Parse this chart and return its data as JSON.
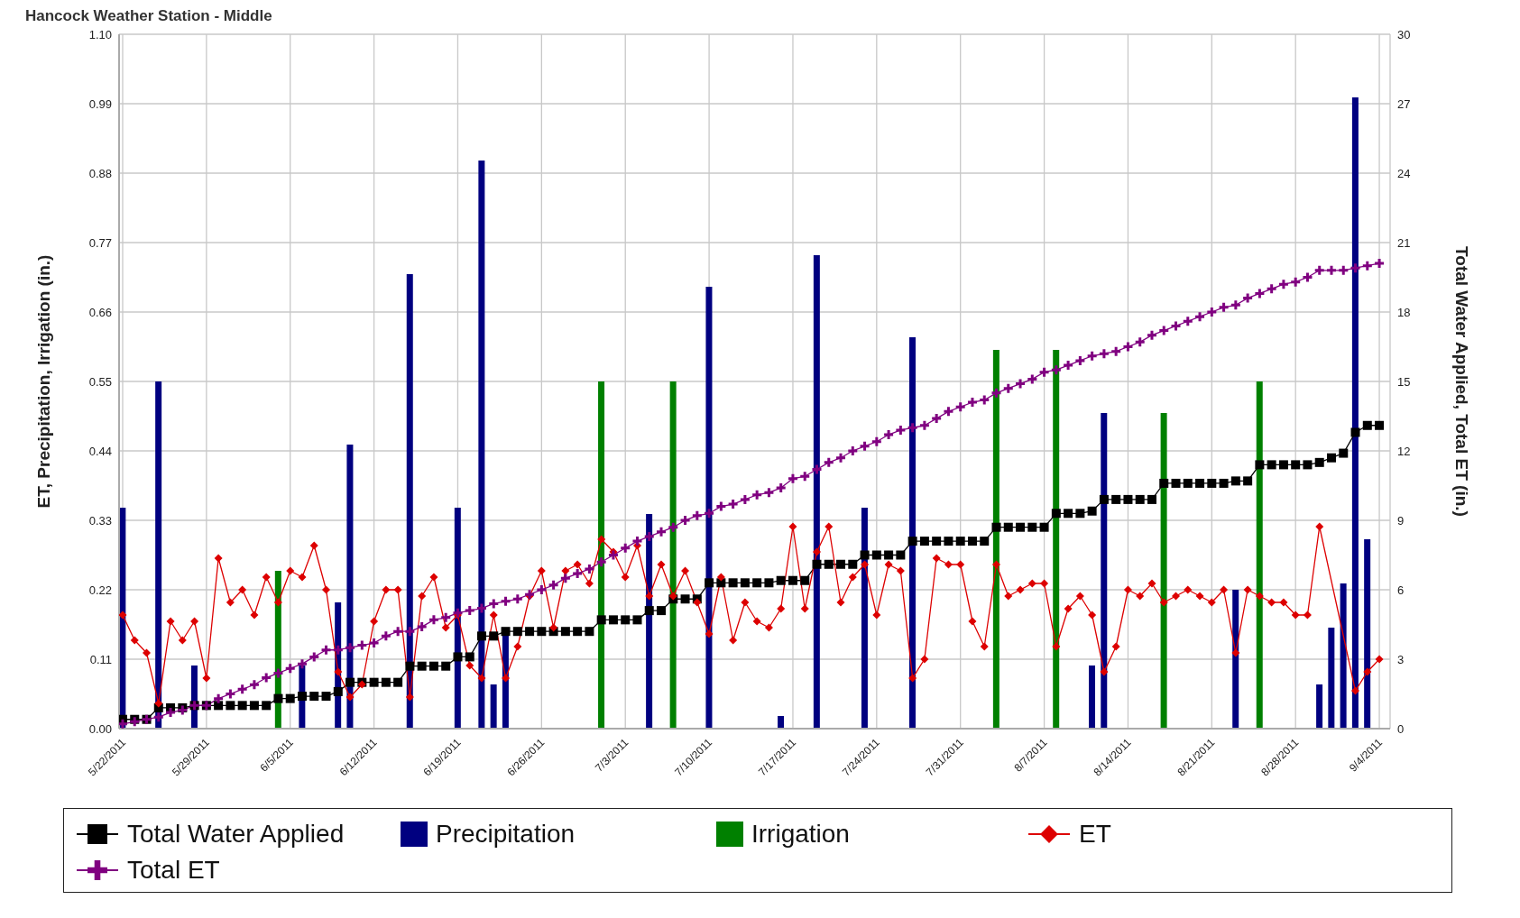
{
  "chart_data": {
    "type": "line",
    "title": "Hancock Weather Station - Middle",
    "ylabel": "ET, Precipitation, Irrigation (in.)",
    "y2label": "Total Water Applied, Total ET (in.)",
    "categories": [
      "5/22/2011",
      null,
      null,
      null,
      null,
      null,
      null,
      "5/29/2011",
      null,
      null,
      null,
      null,
      null,
      null,
      "6/5/2011",
      null,
      null,
      null,
      null,
      null,
      null,
      "6/12/2011",
      null,
      null,
      null,
      null,
      null,
      null,
      "6/19/2011",
      null,
      null,
      null,
      null,
      null,
      null,
      "6/26/2011",
      null,
      null,
      null,
      null,
      null,
      null,
      "7/3/2011",
      null,
      null,
      null,
      null,
      null,
      null,
      "7/10/2011",
      null,
      null,
      null,
      null,
      null,
      null,
      "7/17/2011",
      null,
      null,
      null,
      null,
      null,
      null,
      "7/24/2011",
      null,
      null,
      null,
      null,
      null,
      null,
      "7/31/2011",
      null,
      null,
      null,
      null,
      null,
      null,
      "8/7/2011",
      null,
      null,
      null,
      null,
      null,
      null,
      "8/14/2011",
      null,
      null,
      null,
      null,
      null,
      null,
      "8/21/2011",
      null,
      null,
      null,
      null,
      null,
      null,
      "8/28/2011",
      null,
      null,
      null,
      null,
      null,
      null,
      "9/4/2011"
    ],
    "series": [
      {
        "name": "Total Water Applied",
        "axis": "y2",
        "color": "#000000",
        "marker": "square",
        "values": [
          0.4,
          0.4,
          0.4,
          0.9,
          0.9,
          0.9,
          1.0,
          1.0,
          1.0,
          1.0,
          1.0,
          1.0,
          1.0,
          1.3,
          1.3,
          1.4,
          1.4,
          1.4,
          1.6,
          2.0,
          2.0,
          2.0,
          2.0,
          2.0,
          2.7,
          2.7,
          2.7,
          2.7,
          3.1,
          3.1,
          4.0,
          4.0,
          4.2,
          4.2,
          4.2,
          4.2,
          4.2,
          4.2,
          4.2,
          4.2,
          4.7,
          4.7,
          4.7,
          4.7,
          5.1,
          5.1,
          5.6,
          5.6,
          5.6,
          6.3,
          6.3,
          6.3,
          6.3,
          6.3,
          6.3,
          6.4,
          6.4,
          6.4,
          7.1,
          7.1,
          7.1,
          7.1,
          7.5,
          7.5,
          7.5,
          7.5,
          8.1,
          8.1,
          8.1,
          8.1,
          8.1,
          8.1,
          8.1,
          8.7,
          8.7,
          8.7,
          8.7,
          8.7,
          9.3,
          9.3,
          9.3,
          9.4,
          9.9,
          9.9,
          9.9,
          9.9,
          9.9,
          10.6,
          10.6,
          10.6,
          10.6,
          10.6,
          10.6,
          10.7,
          10.7,
          11.4,
          11.4,
          11.4,
          11.4,
          11.4,
          11.5,
          11.7,
          11.9,
          12.8,
          13.1,
          13.1
        ]
      },
      {
        "name": "Precipitation",
        "type": "bar",
        "color": "#000080",
        "values": [
          0.35,
          null,
          null,
          0.55,
          null,
          null,
          0.1,
          null,
          null,
          null,
          null,
          null,
          null,
          null,
          null,
          0.1,
          null,
          null,
          0.2,
          0.45,
          null,
          null,
          null,
          null,
          0.72,
          null,
          null,
          null,
          0.35,
          null,
          0.9,
          0.07,
          0.15,
          null,
          null,
          null,
          null,
          null,
          null,
          null,
          null,
          null,
          null,
          null,
          0.34,
          null,
          null,
          null,
          null,
          0.7,
          null,
          null,
          null,
          null,
          null,
          0.02,
          null,
          null,
          0.75,
          null,
          null,
          null,
          0.35,
          null,
          null,
          null,
          0.62,
          null,
          null,
          null,
          null,
          null,
          null,
          null,
          null,
          null,
          null,
          null,
          null,
          null,
          null,
          0.1,
          0.5,
          null,
          null,
          null,
          null,
          null,
          null,
          null,
          null,
          null,
          null,
          0.22,
          null,
          null,
          null,
          null,
          null,
          null,
          0.07,
          0.16,
          0.23,
          1.0,
          0.3,
          null
        ]
      },
      {
        "name": "Irrigation",
        "type": "bar",
        "color": "#008000",
        "values": [
          null,
          null,
          null,
          null,
          null,
          null,
          null,
          null,
          null,
          null,
          null,
          null,
          null,
          0.25,
          null,
          null,
          null,
          null,
          null,
          null,
          null,
          null,
          null,
          null,
          null,
          null,
          null,
          null,
          null,
          null,
          null,
          null,
          null,
          null,
          null,
          null,
          null,
          null,
          null,
          null,
          0.55,
          null,
          null,
          null,
          null,
          null,
          0.55,
          null,
          null,
          null,
          null,
          null,
          null,
          null,
          null,
          null,
          null,
          null,
          null,
          null,
          null,
          null,
          null,
          null,
          null,
          null,
          null,
          null,
          null,
          null,
          null,
          null,
          null,
          0.6,
          null,
          null,
          null,
          null,
          0.6,
          null,
          null,
          null,
          null,
          null,
          null,
          null,
          null,
          0.5,
          null,
          null,
          null,
          null,
          null,
          null,
          null,
          0.55,
          null,
          null,
          null,
          null,
          null,
          null,
          null,
          null,
          null,
          null
        ]
      },
      {
        "name": "ET",
        "color": "#dd0000",
        "marker": "diamond",
        "values": [
          0.18,
          0.14,
          0.12,
          0.04,
          0.17,
          0.14,
          0.17,
          0.08,
          0.27,
          0.2,
          0.22,
          0.18,
          0.24,
          0.2,
          0.25,
          0.24,
          0.29,
          0.22,
          0.09,
          0.05,
          0.07,
          0.17,
          0.22,
          0.22,
          0.05,
          0.21,
          0.24,
          0.16,
          0.18,
          0.1,
          0.08,
          0.18,
          0.08,
          0.13,
          0.21,
          0.25,
          0.16,
          0.25,
          0.26,
          0.23,
          0.3,
          0.28,
          0.24,
          0.29,
          0.21,
          0.26,
          0.21,
          0.25,
          0.2,
          0.15,
          0.24,
          0.14,
          0.2,
          0.17,
          0.16,
          0.19,
          0.32,
          0.19,
          0.28,
          0.32,
          0.2,
          0.24,
          0.26,
          0.18,
          0.26,
          0.25,
          0.08,
          0.11,
          0.27,
          0.26,
          0.26,
          0.17,
          0.13,
          0.26,
          0.21,
          0.22,
          0.23,
          0.23,
          0.13,
          0.19,
          0.21,
          0.18,
          0.09,
          0.13,
          0.22,
          0.21,
          0.23,
          0.2,
          0.21,
          0.22,
          0.21,
          0.2,
          0.22,
          0.12,
          0.22,
          0.21,
          0.2,
          0.2,
          0.18,
          0.18,
          0.32,
          null,
          null,
          0.06,
          0.09,
          0.11
        ]
      },
      {
        "name": "Total ET",
        "axis": "y2",
        "color": "#800080",
        "marker": "cross",
        "values": [
          0.2,
          0.3,
          0.4,
          0.5,
          0.7,
          0.8,
          1.0,
          1.0,
          1.3,
          1.5,
          1.7,
          1.9,
          2.2,
          2.4,
          2.6,
          2.8,
          3.1,
          3.4,
          3.4,
          3.5,
          3.6,
          3.7,
          4.0,
          4.2,
          4.2,
          4.4,
          4.7,
          4.8,
          5.0,
          5.1,
          5.2,
          5.4,
          5.5,
          5.6,
          5.8,
          6.0,
          6.2,
          6.5,
          6.7,
          6.9,
          7.2,
          7.5,
          7.8,
          8.1,
          8.3,
          8.5,
          8.7,
          9.0,
          9.2,
          9.3,
          9.6,
          9.7,
          9.9,
          10.1,
          10.2,
          10.4,
          10.8,
          10.9,
          11.2,
          11.5,
          11.7,
          12.0,
          12.2,
          12.4,
          12.7,
          12.9,
          13.0,
          13.1,
          13.4,
          13.7,
          13.9,
          14.1,
          14.2,
          14.5,
          14.7,
          14.9,
          15.1,
          15.4,
          15.5,
          15.7,
          15.9,
          16.1,
          16.2,
          16.3,
          16.5,
          16.7,
          17.0,
          17.2,
          17.4,
          17.6,
          17.8,
          18.0,
          18.2,
          18.3,
          18.6,
          18.8,
          19.0,
          19.2,
          19.3,
          19.5,
          19.8,
          19.8,
          19.8,
          19.9,
          20.0,
          20.1
        ]
      }
    ],
    "ylim": [
      0,
      1.1
    ],
    "yticks": [
      {
        "value": 0,
        "label": "0.00"
      },
      {
        "value": 0.11,
        "label": "0.11"
      },
      {
        "value": 0.22,
        "label": "0.22"
      },
      {
        "value": 0.33,
        "label": "0.33"
      },
      {
        "value": 0.44,
        "label": "0.44"
      },
      {
        "value": 0.55,
        "label": "0.55"
      },
      {
        "value": 0.66,
        "label": "0.66"
      },
      {
        "value": 0.77,
        "label": "0.77"
      },
      {
        "value": 0.88,
        "label": "0.88"
      },
      {
        "value": 0.99,
        "label": "0.99"
      },
      {
        "value": 1.1,
        "label": "1.10"
      }
    ],
    "y2lim": [
      0,
      30
    ],
    "y2ticks": [
      0,
      3,
      6,
      9,
      12,
      15,
      18,
      21,
      24,
      27,
      30
    ],
    "grid": true,
    "legend": "bottom"
  }
}
